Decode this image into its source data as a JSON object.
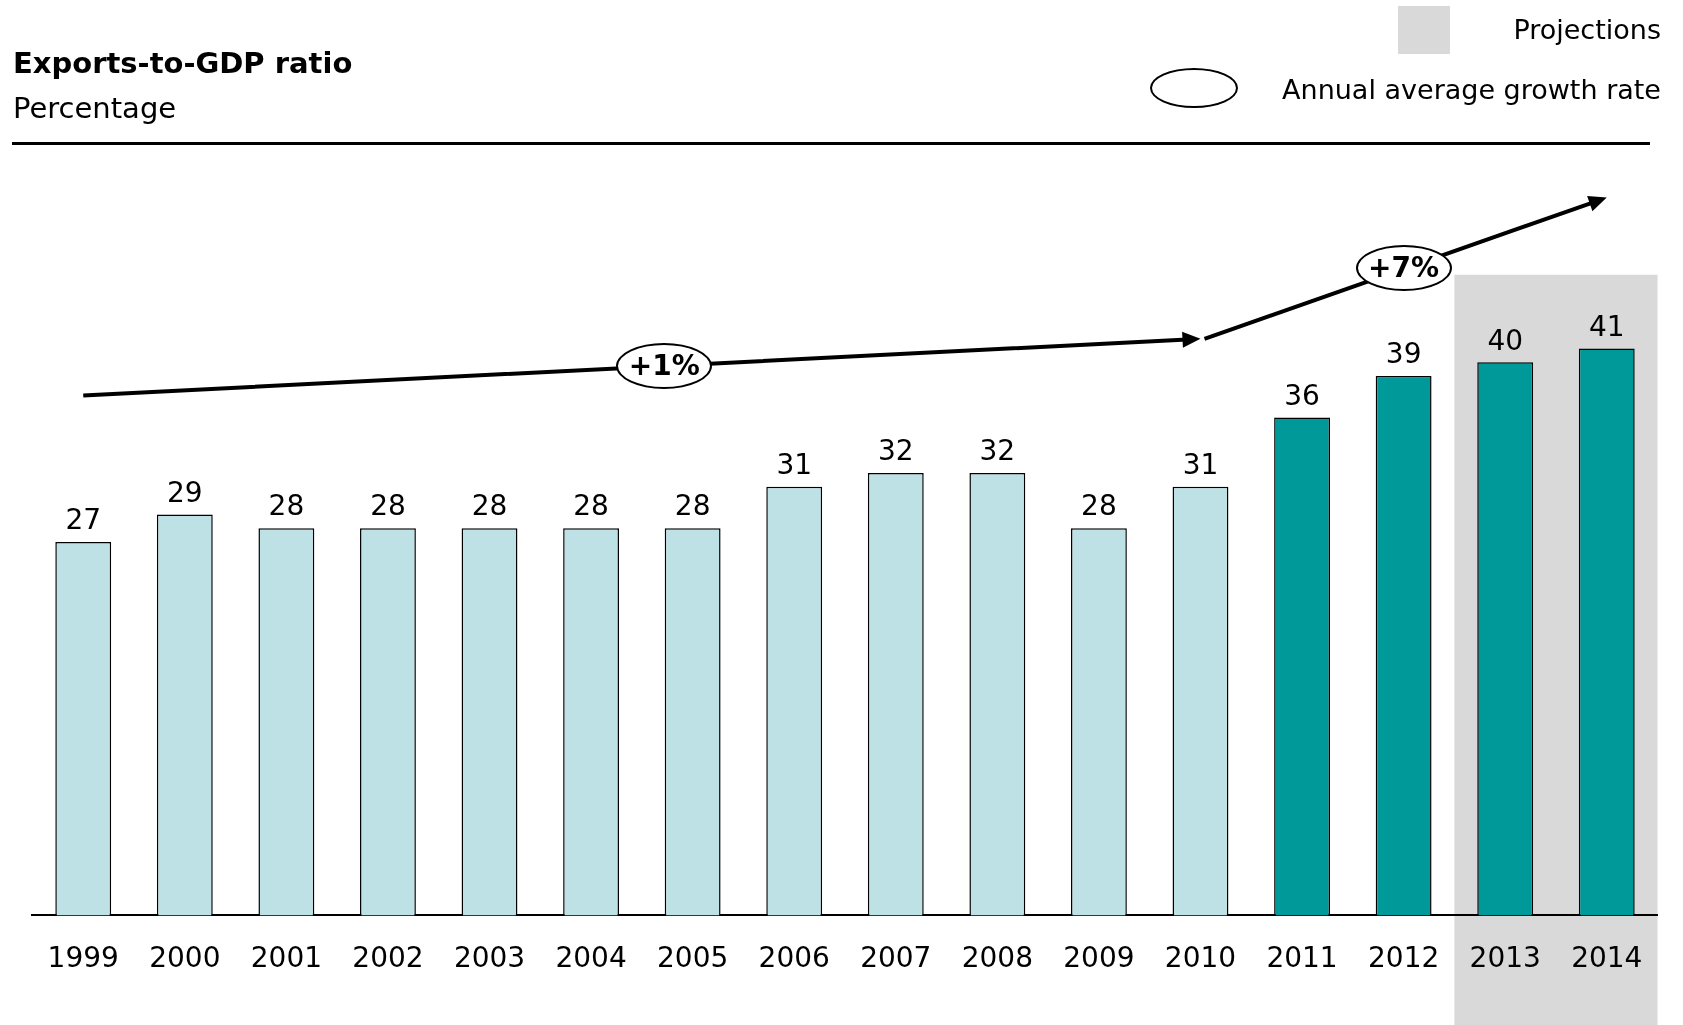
{
  "chart_data": {
    "type": "bar",
    "title": "Exports-to-GDP ratio",
    "subtitle": "Percentage",
    "categories": [
      "1999",
      "2000",
      "2001",
      "2002",
      "2003",
      "2004",
      "2005",
      "2006",
      "2007",
      "2008",
      "2009",
      "2010",
      "2011",
      "2012",
      "2013",
      "2014"
    ],
    "values": [
      27,
      29,
      28,
      28,
      28,
      28,
      28,
      31,
      32,
      32,
      28,
      31,
      36,
      39,
      40,
      41
    ],
    "colors": [
      "#bde1e4",
      "#bde1e4",
      "#bde1e4",
      "#bde1e4",
      "#bde1e4",
      "#bde1e4",
      "#bde1e4",
      "#bde1e4",
      "#bde1e4",
      "#bde1e4",
      "#bde1e4",
      "#bde1e4",
      "#00999a",
      "#00999a",
      "#00999a",
      "#00999a"
    ],
    "relative": false,
    "data_labels": true,
    "bands": [
      {
        "axis": "x",
        "from": "2013",
        "to": "2014",
        "label": "Projections",
        "color": "#d9d9d9"
      }
    ],
    "annotations": [
      "+1%",
      "+7%",
      "Annual average growth rate"
    ]
  }
}
